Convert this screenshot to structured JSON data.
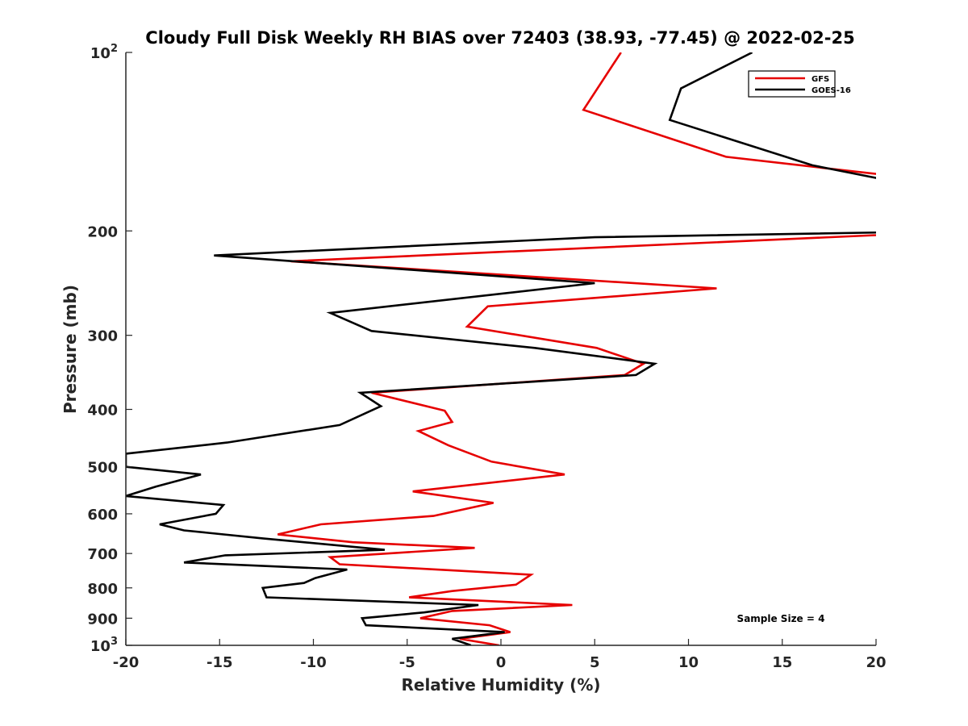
{
  "chart_data": {
    "type": "line",
    "title": "Cloudy Full Disk Weekly RH BIAS over 72403 (38.93, -77.45) @ 2022-02-25",
    "xlabel": "Relative Humidity (%)",
    "ylabel": "Pressure (mb)",
    "xlim": [
      -20,
      20
    ],
    "ylim": [
      100,
      1000
    ],
    "y_scale": "log",
    "y_reversed": true,
    "x_ticks": [
      "-20",
      "-15",
      "-10",
      "-5",
      "0",
      "5",
      "10",
      "15",
      "20"
    ],
    "y_ticks": [
      {
        "value": 100,
        "label": "10",
        "exp": "2"
      },
      {
        "value": 200,
        "label": "200"
      },
      {
        "value": 300,
        "label": "300"
      },
      {
        "value": 400,
        "label": "400"
      },
      {
        "value": 500,
        "label": "500"
      },
      {
        "value": 600,
        "label": "600"
      },
      {
        "value": 700,
        "label": "700"
      },
      {
        "value": 800,
        "label": "800"
      },
      {
        "value": 900,
        "label": "900"
      },
      {
        "value": 1000,
        "label": "10",
        "exp": "3"
      }
    ],
    "legend_position": "top-right",
    "grid": false,
    "annotation": "Sample Size = 4",
    "series": [
      {
        "name": "GFS",
        "color": "#e60000",
        "points": [
          [
            6.4,
            100
          ],
          [
            4.4,
            125
          ],
          [
            12.0,
            150
          ],
          [
            23.5,
            165
          ],
          [
            25.0,
            200
          ],
          [
            -11.2,
            225
          ],
          [
            11.5,
            250
          ],
          [
            -0.7,
            268
          ],
          [
            -1.8,
            290
          ],
          [
            5.1,
            315
          ],
          [
            7.6,
            335
          ],
          [
            6.6,
            350
          ],
          [
            -6.9,
            375
          ],
          [
            -3.0,
            402
          ],
          [
            -2.6,
            420
          ],
          [
            -4.4,
            435
          ],
          [
            -2.8,
            460
          ],
          [
            -0.5,
            490
          ],
          [
            3.4,
            515
          ],
          [
            -4.7,
            550
          ],
          [
            -0.4,
            575
          ],
          [
            -3.6,
            605
          ],
          [
            -9.6,
            625
          ],
          [
            -11.9,
            650
          ],
          [
            -7.9,
            670
          ],
          [
            -1.4,
            685
          ],
          [
            -9.1,
            710
          ],
          [
            -8.6,
            730
          ],
          [
            1.6,
            760
          ],
          [
            0.8,
            790
          ],
          [
            -2.6,
            810
          ],
          [
            -4.9,
            830
          ],
          [
            3.8,
            855
          ],
          [
            -2.6,
            875
          ],
          [
            -4.3,
            900
          ],
          [
            -0.6,
            925
          ],
          [
            0.5,
            950
          ],
          [
            -2.2,
            975
          ],
          [
            -0.1,
            1000
          ]
        ]
      },
      {
        "name": "GOES-16",
        "color": "#000000",
        "points": [
          [
            13.4,
            100
          ],
          [
            9.6,
            115
          ],
          [
            9.0,
            130
          ],
          [
            16.6,
            155
          ],
          [
            25.0,
            175
          ],
          [
            25.0,
            200
          ],
          [
            5.0,
            205
          ],
          [
            -15.3,
            220
          ],
          [
            5.0,
            245
          ],
          [
            -9.1,
            275
          ],
          [
            -6.9,
            295
          ],
          [
            1.8,
            315
          ],
          [
            8.2,
            335
          ],
          [
            7.2,
            350
          ],
          [
            -7.5,
            375
          ],
          [
            -6.4,
            395
          ],
          [
            -8.6,
            425
          ],
          [
            -14.6,
            455
          ],
          [
            -20.0,
            475
          ],
          [
            -20.0,
            500
          ],
          [
            -16.0,
            515
          ],
          [
            -18.4,
            540
          ],
          [
            -20.0,
            560
          ],
          [
            -14.8,
            580
          ],
          [
            -15.2,
            600
          ],
          [
            -18.2,
            625
          ],
          [
            -16.9,
            640
          ],
          [
            -12.7,
            660
          ],
          [
            -6.2,
            690
          ],
          [
            -14.7,
            705
          ],
          [
            -16.9,
            725
          ],
          [
            -8.2,
            745
          ],
          [
            -9.9,
            770
          ],
          [
            -10.5,
            785
          ],
          [
            -12.7,
            800
          ],
          [
            -12.5,
            830
          ],
          [
            -1.2,
            855
          ],
          [
            -4.1,
            880
          ],
          [
            -7.4,
            900
          ],
          [
            -7.2,
            925
          ],
          [
            0.2,
            950
          ],
          [
            -2.6,
            975
          ],
          [
            -1.6,
            1000
          ]
        ]
      }
    ]
  }
}
